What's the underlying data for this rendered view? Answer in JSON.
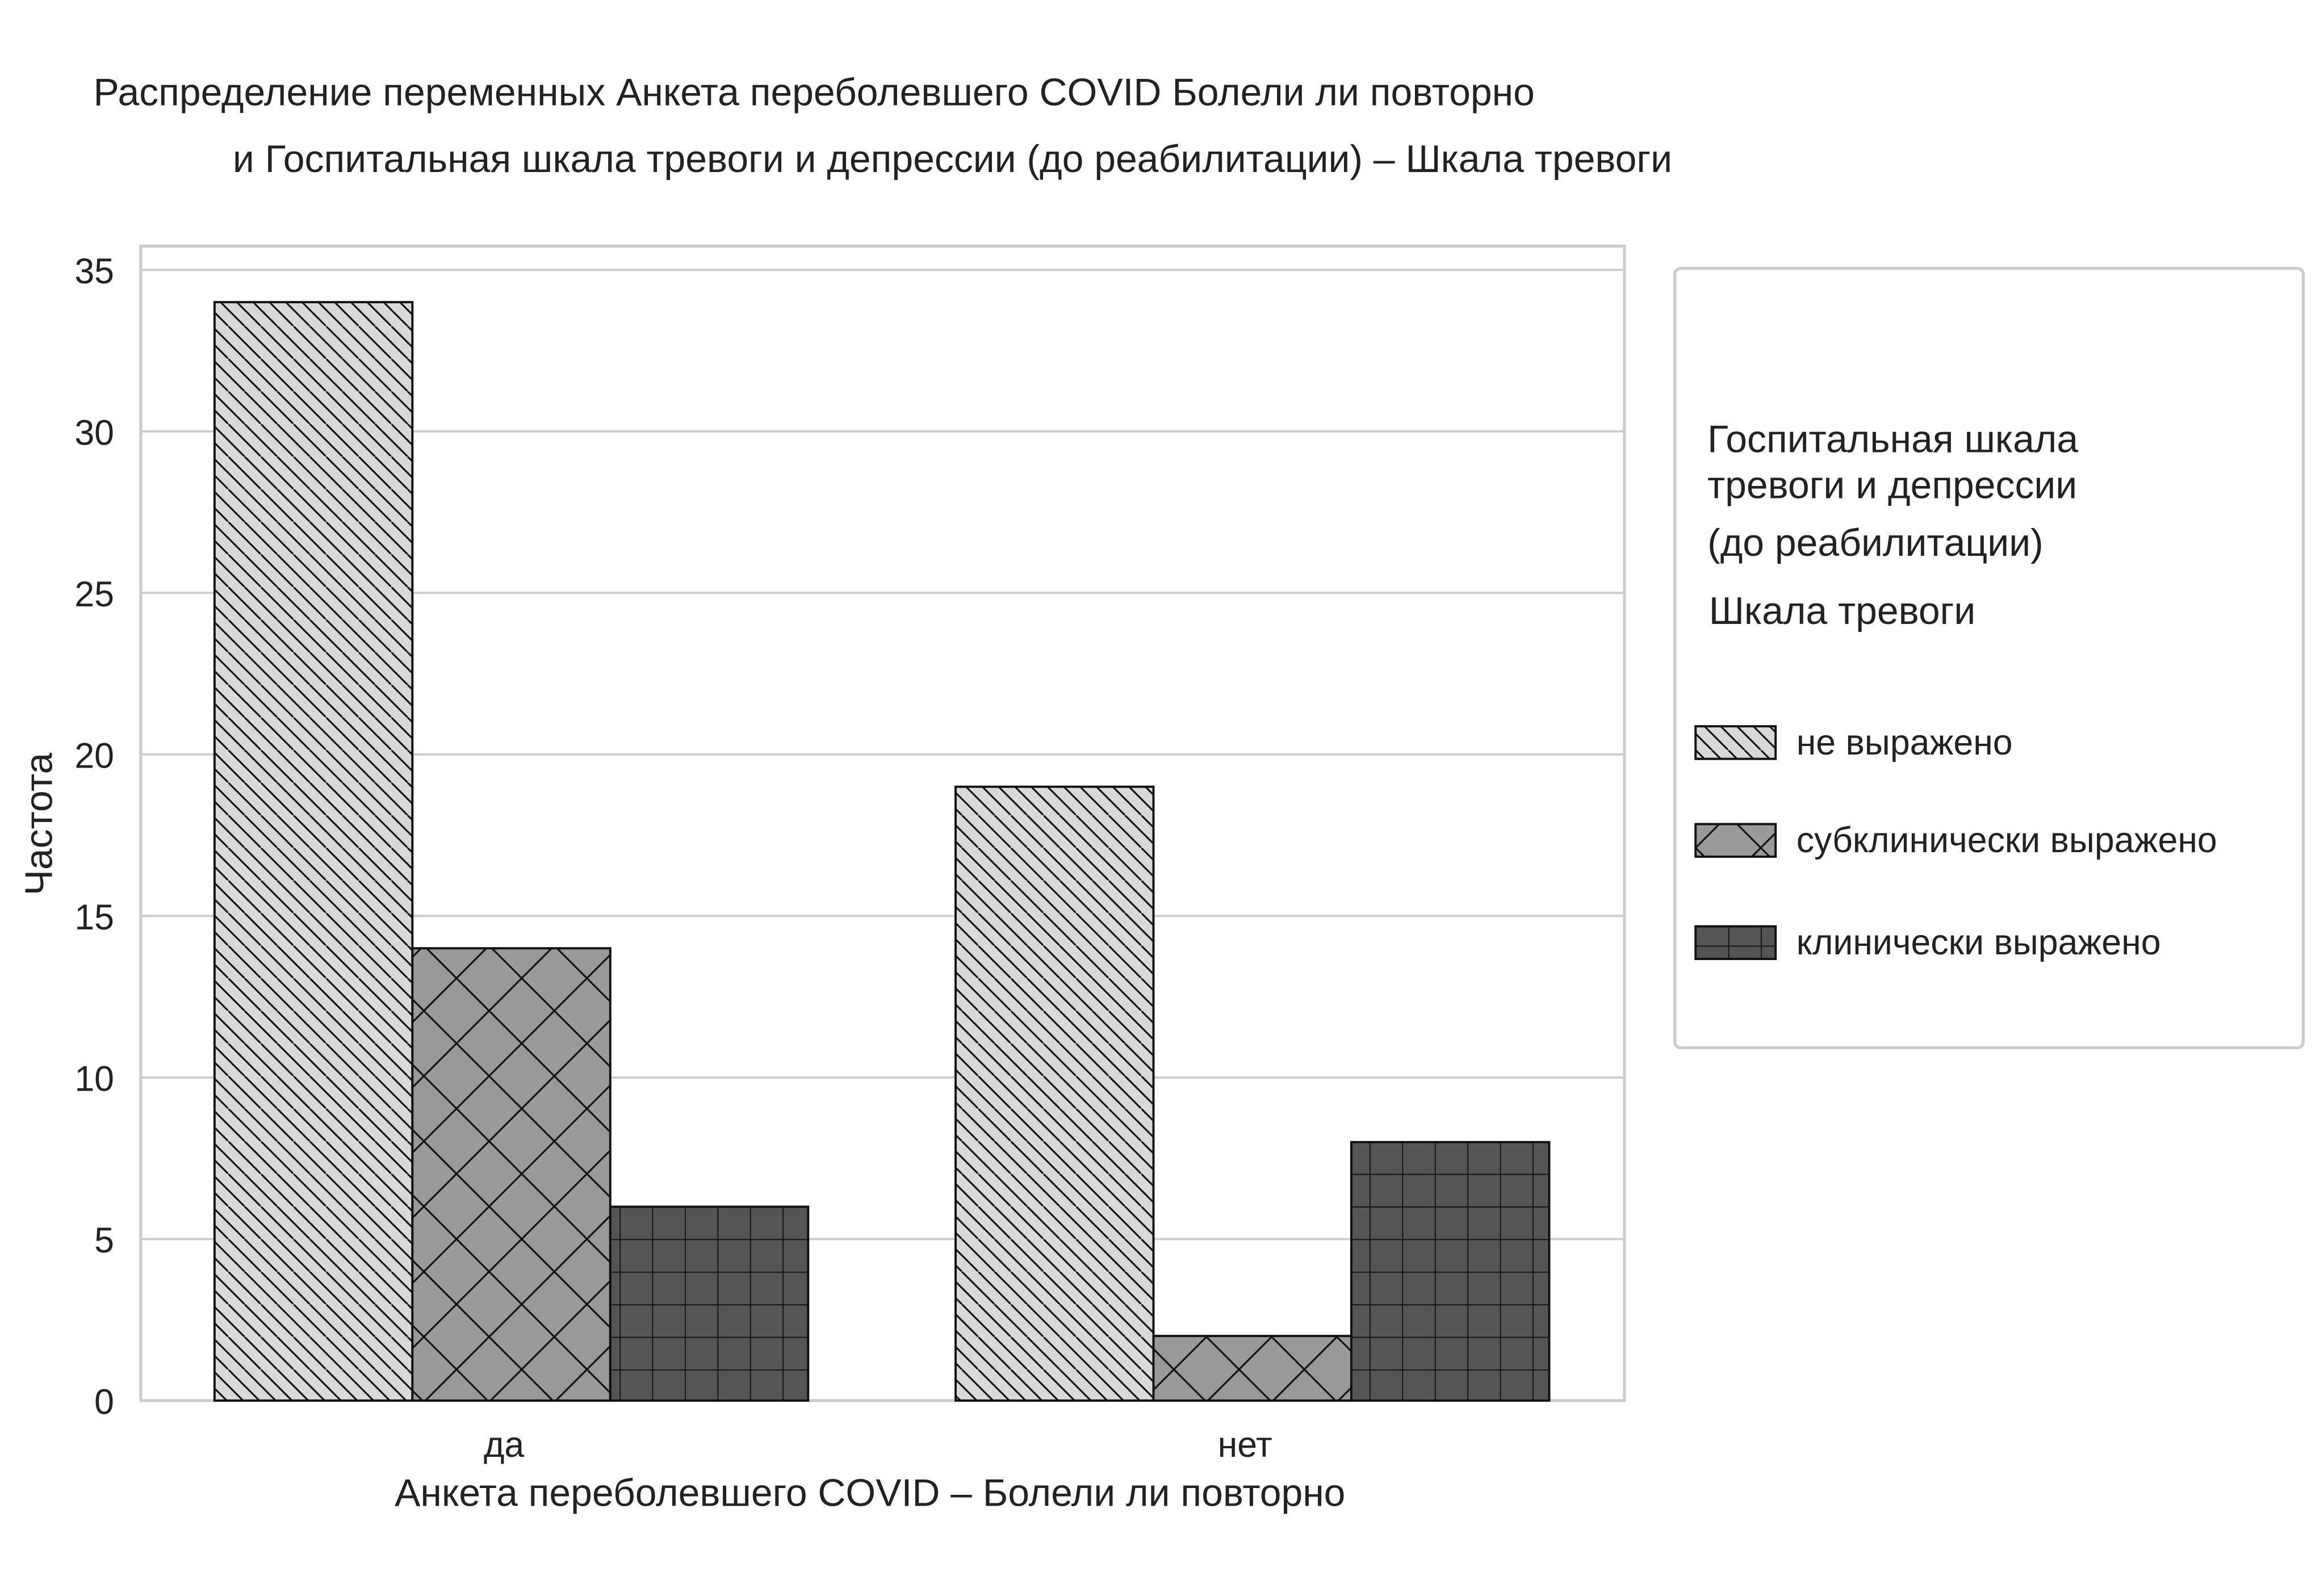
{
  "chart_data": {
    "type": "bar",
    "title_line1": "Распределение переменных  Анкета переболевшего COVID   Болели ли повторно",
    "title_line2": "и  Госпитальная шкала тревоги и депрессии (до  реабилитации) – Шкала тревоги",
    "xlabel": "Анкета переболевшего COVID – Болели ли повторно",
    "ylabel": "Частота",
    "ylim": [
      0,
      35
    ],
    "yticks": [
      "0",
      "5",
      "10",
      "15",
      "20",
      "25",
      "30",
      "35"
    ],
    "categories": [
      "да",
      "нет"
    ],
    "grid": true,
    "legend": {
      "placement": "right",
      "title_lines": [
        "Госпитальная шкала",
        "тревоги и  депрессии",
        "(до  реабилитации)",
        "Шкала тревоги"
      ]
    },
    "series": [
      {
        "name": "не выражено",
        "values": [
          34,
          19
        ],
        "color": "#d9d9d9",
        "hatch": "diagonal"
      },
      {
        "name": "субклинически выражено",
        "values": [
          14,
          2
        ],
        "color": "#999999",
        "hatch": "cross-diagonal"
      },
      {
        "name": "клинически выражено",
        "values": [
          6,
          8
        ],
        "color": "#555555",
        "hatch": "grid"
      }
    ]
  }
}
